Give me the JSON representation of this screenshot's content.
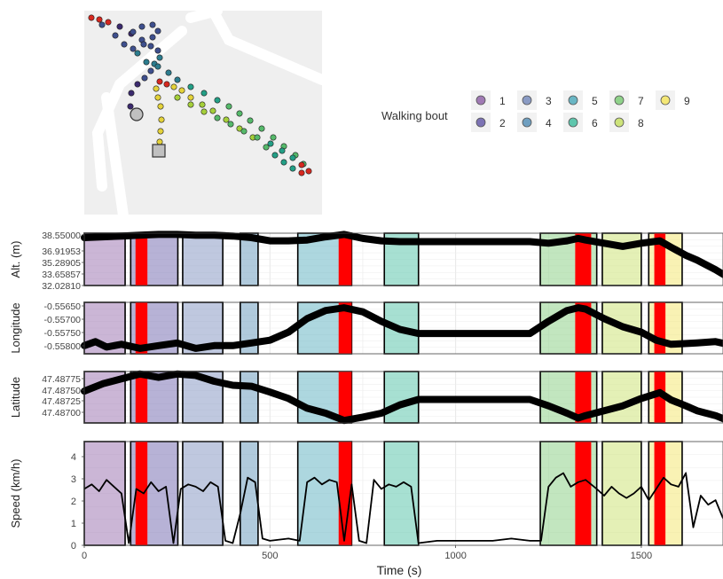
{
  "legend": {
    "title": "Walking bout",
    "items": [
      "1",
      "2",
      "3",
      "4",
      "5",
      "6",
      "7",
      "8",
      "9"
    ],
    "colors": [
      "#a07ab4",
      "#7c73b4",
      "#8a9bc4",
      "#6f9fc0",
      "#69b6c4",
      "#5fc6ad",
      "#8fd28a",
      "#cde37a",
      "#f4e776"
    ]
  },
  "map": {
    "background": "#efefef",
    "road_color": "#ffffff",
    "start_marker": "circle",
    "end_marker": "square",
    "track_colors": [
      "#3b2a6e",
      "#3e4f8d",
      "#2c7c8e",
      "#239f86",
      "#55b96a",
      "#a5cf3a",
      "#e4d23a",
      "#d6281f"
    ]
  },
  "chart_data": [
    {
      "type": "line",
      "panel": "altitude",
      "ylabel": "Alt. (m)",
      "yticks": [
        "38.55000",
        "36.91953",
        "35.28905",
        "33.65857",
        "32.02810"
      ],
      "ylim": [
        32.0281,
        38.55
      ],
      "x": [
        0,
        50,
        100,
        150,
        200,
        250,
        300,
        350,
        400,
        450,
        500,
        550,
        600,
        650,
        700,
        750,
        800,
        850,
        900,
        1000,
        1100,
        1200,
        1250,
        1300,
        1330,
        1350,
        1400,
        1450,
        1500,
        1550,
        1580,
        1620,
        1650,
        1700,
        1750
      ],
      "y": [
        38.0,
        38.1,
        38.2,
        38.3,
        38.4,
        38.4,
        38.3,
        38.3,
        38.2,
        38.0,
        37.6,
        37.6,
        37.7,
        38.1,
        38.4,
        37.9,
        37.6,
        37.5,
        37.5,
        37.5,
        37.5,
        37.5,
        37.3,
        37.6,
        37.9,
        37.7,
        37.3,
        36.9,
        37.3,
        37.6,
        36.8,
        35.8,
        35.2,
        34.0,
        32.6
      ]
    },
    {
      "type": "line",
      "panel": "longitude",
      "ylabel": "Longitude",
      "yticks": [
        "-0.55650",
        "-0.55700",
        "-0.55750",
        "-0.55800"
      ],
      "ylim": [
        -0.5582,
        -0.5563
      ],
      "x": [
        0,
        30,
        60,
        100,
        150,
        200,
        250,
        300,
        350,
        400,
        450,
        500,
        550,
        600,
        650,
        700,
        750,
        800,
        850,
        900,
        1000,
        1100,
        1200,
        1250,
        1300,
        1330,
        1350,
        1400,
        1450,
        1500,
        1540,
        1580,
        1650,
        1700,
        1750
      ],
      "y": [
        -0.5579,
        -0.55775,
        -0.55795,
        -0.55785,
        -0.558,
        -0.5579,
        -0.5578,
        -0.558,
        -0.5579,
        -0.5579,
        -0.5578,
        -0.5577,
        -0.5574,
        -0.5569,
        -0.5566,
        -0.5565,
        -0.55665,
        -0.557,
        -0.5573,
        -0.55745,
        -0.55745,
        -0.55745,
        -0.55745,
        -0.557,
        -0.5566,
        -0.5565,
        -0.55655,
        -0.5569,
        -0.5572,
        -0.5574,
        -0.5577,
        -0.55785,
        -0.5578,
        -0.55775,
        -0.5579
      ]
    },
    {
      "type": "line",
      "panel": "latitude",
      "ylabel": "Latitude",
      "yticks": [
        "47.48775",
        "47.48750",
        "47.48725",
        "47.48700"
      ],
      "ylim": [
        47.48685,
        47.4879
      ],
      "x": [
        0,
        50,
        100,
        150,
        200,
        250,
        300,
        350,
        400,
        450,
        500,
        550,
        600,
        650,
        700,
        750,
        800,
        850,
        900,
        1000,
        1100,
        1200,
        1250,
        1300,
        1330,
        1350,
        1400,
        1450,
        1500,
        1550,
        1580,
        1620,
        1650,
        1700,
        1750
      ],
      "y": [
        47.4875,
        47.48765,
        47.48775,
        47.48785,
        47.48778,
        47.48785,
        47.48782,
        47.4877,
        47.48762,
        47.4876,
        47.48748,
        47.48735,
        47.48715,
        47.48705,
        47.4869,
        47.48697,
        47.48705,
        47.48722,
        47.48733,
        47.48733,
        47.48733,
        47.48733,
        47.4872,
        47.48705,
        47.48695,
        47.487,
        47.4871,
        47.4872,
        47.48735,
        47.48747,
        47.48732,
        47.4872,
        47.4871,
        47.487,
        47.48685
      ]
    },
    {
      "type": "line",
      "panel": "speed",
      "ylabel": "Speed (km/h)",
      "yticks": [
        "0",
        "1",
        "2",
        "3",
        "4"
      ],
      "ylim": [
        0,
        4.6
      ],
      "xlabel": "Time (s)",
      "xticks": [
        "0",
        "500",
        "1000",
        "1500"
      ],
      "xlim": [
        0,
        1720
      ],
      "x": [
        0,
        20,
        40,
        60,
        80,
        100,
        120,
        140,
        160,
        180,
        200,
        220,
        240,
        260,
        280,
        300,
        320,
        340,
        360,
        380,
        400,
        420,
        440,
        460,
        480,
        500,
        550,
        580,
        600,
        620,
        640,
        660,
        680,
        700,
        720,
        740,
        760,
        780,
        800,
        820,
        840,
        860,
        880,
        900,
        950,
        1000,
        1050,
        1100,
        1150,
        1200,
        1230,
        1250,
        1270,
        1290,
        1310,
        1330,
        1350,
        1380,
        1400,
        1420,
        1440,
        1460,
        1480,
        1500,
        1520,
        1540,
        1560,
        1580,
        1600,
        1620,
        1640,
        1660,
        1680,
        1700,
        1720
      ],
      "y": [
        2.5,
        2.7,
        2.4,
        2.9,
        2.6,
        2.3,
        0.1,
        2.5,
        2.3,
        2.8,
        2.4,
        2.6,
        0.1,
        2.5,
        2.7,
        2.6,
        2.4,
        2.8,
        2.6,
        0.2,
        0.1,
        1.4,
        3.0,
        2.8,
        0.3,
        0.2,
        0.3,
        0.2,
        2.8,
        3.0,
        2.7,
        2.9,
        2.8,
        0.2,
        2.7,
        0.2,
        0.1,
        2.9,
        2.5,
        2.7,
        2.6,
        2.8,
        2.6,
        0.1,
        0.2,
        0.2,
        0.2,
        0.2,
        0.3,
        0.2,
        0.2,
        2.6,
        3.0,
        3.2,
        2.6,
        2.8,
        2.9,
        2.5,
        2.2,
        2.6,
        2.3,
        2.1,
        2.3,
        2.6,
        2.0,
        2.5,
        3.0,
        2.7,
        2.6,
        3.2,
        0.8,
        2.2,
        1.8,
        2.0,
        1.2
      ]
    }
  ],
  "bouts": [
    {
      "bout": 1,
      "start": 0,
      "end": 110
    },
    {
      "bout": 2,
      "start": 125,
      "end": 252
    },
    {
      "bout": 3,
      "start": 265,
      "end": 373
    },
    {
      "bout": 4,
      "start": 420,
      "end": 468
    },
    {
      "bout": 5,
      "start": 575,
      "end": 720
    },
    {
      "bout": 6,
      "start": 808,
      "end": 900
    },
    {
      "bout": 7,
      "start": 1228,
      "end": 1380
    },
    {
      "bout": 8,
      "start": 1395,
      "end": 1500
    },
    {
      "bout": 9,
      "start": 1520,
      "end": 1610
    }
  ],
  "red_intervals": [
    [
      138,
      170
    ],
    [
      685,
      720
    ],
    [
      1322,
      1365
    ],
    [
      1535,
      1565
    ]
  ],
  "colors": {
    "highlight": "#ff0000",
    "series": "#000000",
    "secondary_series": "#a0a0a0",
    "grid": "#e6e6e6"
  }
}
